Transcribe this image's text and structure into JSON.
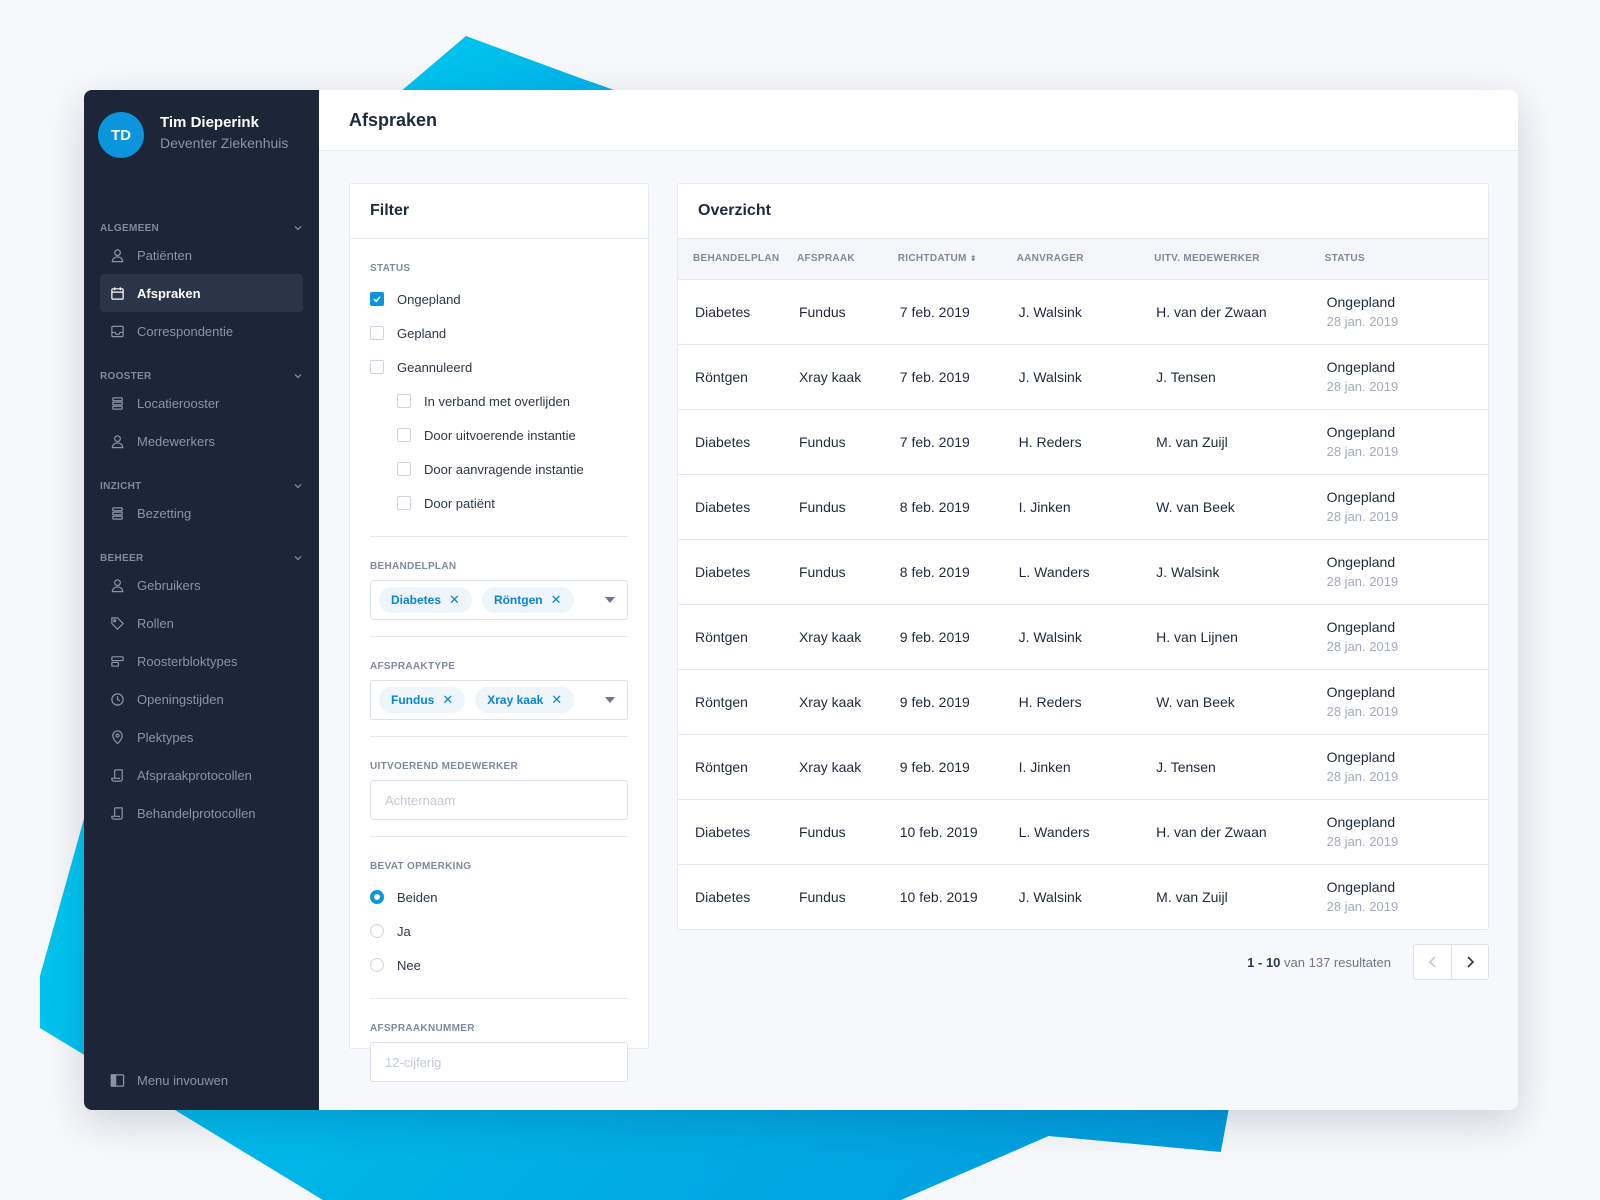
{
  "profile": {
    "initials": "TD",
    "name": "Tim Dieperink",
    "org": "Deventer Ziekenhuis"
  },
  "nav": [
    {
      "section": "ALGEMEEN",
      "items": [
        {
          "label": "Patiënten",
          "icon": "user-icon"
        },
        {
          "label": "Afspraken",
          "icon": "calendar-icon",
          "active": true
        },
        {
          "label": "Correspondentie",
          "icon": "inbox-icon"
        }
      ]
    },
    {
      "section": "ROOSTER",
      "items": [
        {
          "label": "Locatierooster",
          "icon": "stack-icon"
        },
        {
          "label": "Medewerkers",
          "icon": "user-icon"
        }
      ]
    },
    {
      "section": "INZICHT",
      "items": [
        {
          "label": "Bezetting",
          "icon": "stack-icon"
        }
      ]
    },
    {
      "section": "BEHEER",
      "items": [
        {
          "label": "Gebruikers",
          "icon": "user-icon"
        },
        {
          "label": "Rollen",
          "icon": "tag-icon"
        },
        {
          "label": "Roosterbloktypes",
          "icon": "block-icon"
        },
        {
          "label": "Openingstijden",
          "icon": "clock-icon"
        },
        {
          "label": "Plektypes",
          "icon": "pin-icon"
        },
        {
          "label": "Afspraakprotocollen",
          "icon": "scroll-icon"
        },
        {
          "label": "Behandelprotocollen",
          "icon": "scroll-icon"
        }
      ]
    }
  ],
  "collapse_label": "Menu invouwen",
  "page_title": "Afspraken",
  "filter": {
    "title": "Filter",
    "status": {
      "label": "STATUS",
      "options": [
        {
          "label": "Ongepland",
          "checked": true,
          "sub": false
        },
        {
          "label": "Gepland",
          "checked": false,
          "sub": false
        },
        {
          "label": "Geannuleerd",
          "checked": false,
          "sub": false
        },
        {
          "label": "In verband met overlijden",
          "checked": false,
          "sub": true
        },
        {
          "label": "Door uitvoerende instantie",
          "checked": false,
          "sub": true
        },
        {
          "label": "Door aanvragende instantie",
          "checked": false,
          "sub": true
        },
        {
          "label": "Door patiënt",
          "checked": false,
          "sub": true
        }
      ]
    },
    "behandelplan": {
      "label": "BEHANDELPLAN",
      "tags": [
        "Diabetes",
        "Röntgen"
      ]
    },
    "afspraaktype": {
      "label": "AFSPRAAKTYPE",
      "tags": [
        "Fundus",
        "Xray kaak"
      ]
    },
    "medewerker": {
      "label": "UITVOEREND MEDEWERKER",
      "placeholder": "Achternaam"
    },
    "opmerking": {
      "label": "BEVAT OPMERKING",
      "options": [
        {
          "label": "Beiden",
          "selected": true
        },
        {
          "label": "Ja",
          "selected": false
        },
        {
          "label": "Nee",
          "selected": false
        }
      ]
    },
    "afspraaknummer": {
      "label": "AFSPRAAKNUMMER",
      "placeholder": "12-cijferig"
    }
  },
  "overview": {
    "title": "Overzicht",
    "columns": [
      "BEHANDELPLAN",
      "AFSPRAAK",
      "RICHTDATUM",
      "AANVRAGER",
      "UITV. MEDEWERKER",
      "STATUS"
    ],
    "rows": [
      [
        "Diabetes",
        "Fundus",
        "7 feb. 2019",
        "J. Walsink",
        "H. van der Zwaan",
        "Ongepland",
        "28 jan. 2019"
      ],
      [
        "Röntgen",
        "Xray kaak",
        "7 feb. 2019",
        "J. Walsink",
        "J. Tensen",
        "Ongepland",
        "28 jan. 2019"
      ],
      [
        "Diabetes",
        "Fundus",
        "7 feb. 2019",
        "H. Reders",
        "M. van Zuijl",
        "Ongepland",
        "28 jan. 2019"
      ],
      [
        "Diabetes",
        "Fundus",
        "8 feb. 2019",
        "I. Jinken",
        "W. van Beek",
        "Ongepland",
        "28 jan. 2019"
      ],
      [
        "Diabetes",
        "Fundus",
        "8 feb. 2019",
        "L. Wanders",
        "J. Walsink",
        "Ongepland",
        "28 jan. 2019"
      ],
      [
        "Röntgen",
        "Xray kaak",
        "9 feb. 2019",
        "J. Walsink",
        "H. van Lijnen",
        "Ongepland",
        "28 jan. 2019"
      ],
      [
        "Röntgen",
        "Xray kaak",
        "9 feb. 2019",
        "H. Reders",
        "W. van Beek",
        "Ongepland",
        "28 jan. 2019"
      ],
      [
        "Röntgen",
        "Xray kaak",
        "9 feb. 2019",
        "I. Jinken",
        "J. Tensen",
        "Ongepland",
        "28 jan. 2019"
      ],
      [
        "Diabetes",
        "Fundus",
        "10 feb. 2019",
        "L. Wanders",
        "H. van der Zwaan",
        "Ongepland",
        "28 jan. 2019"
      ],
      [
        "Diabetes",
        "Fundus",
        "10 feb. 2019",
        "J. Walsink",
        "M. van Zuijl",
        "Ongepland",
        "28 jan. 2019"
      ]
    ],
    "pagination": {
      "range": "1 - 10",
      "suffix": "van 137 resultaten"
    }
  },
  "colors": {
    "accent": "#0a95dd",
    "sidebar": "#1d2638",
    "background_shape": "#00b8ea"
  }
}
